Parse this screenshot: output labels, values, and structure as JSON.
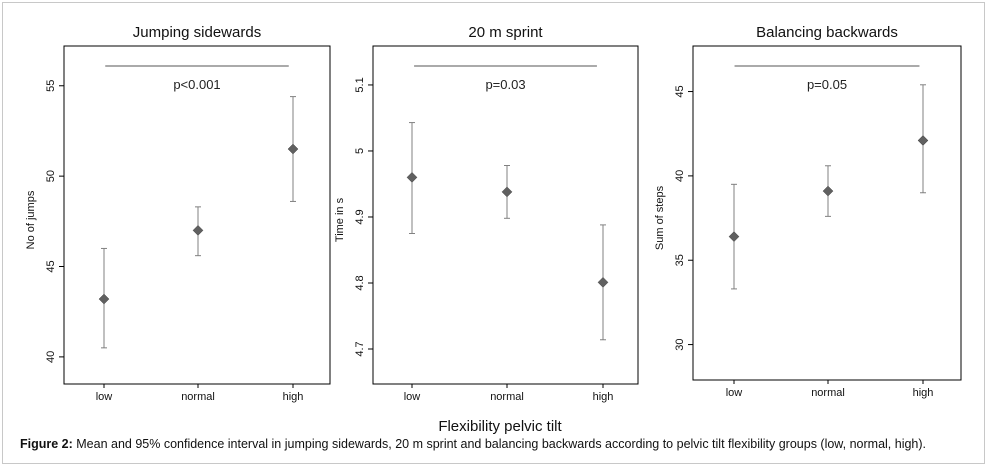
{
  "figure": {
    "shared_xlabel": "Flexibility pelvic tilt",
    "caption_label": "Figure 2:",
    "caption_text": " Mean and 95% confidence interval in jumping sidewards, 20 m sprint and balancing backwards according to pelvic tilt flexibility groups (low, normal, high).",
    "colors": {
      "marker": "#606060",
      "errorbar": "#808080",
      "axis": "#000000",
      "sigline": "#555555"
    }
  },
  "chart_data": [
    {
      "type": "scatter",
      "title": "Jumping sidewards",
      "ylabel": "No of jumps",
      "categories": [
        "low",
        "normal",
        "high"
      ],
      "mean": [
        43.2,
        47.0,
        51.5
      ],
      "ci_low": [
        40.5,
        45.6,
        48.6
      ],
      "ci_high": [
        46.0,
        48.3,
        54.4
      ],
      "yticks": [
        "40",
        "45",
        "50",
        "55"
      ],
      "ylim": [
        38.5,
        57.2
      ],
      "annotation": "p<0.001",
      "grid": false,
      "legend": "none"
    },
    {
      "type": "scatter",
      "title": "20 m sprint",
      "ylabel": "Time in s",
      "categories": [
        "low",
        "normal",
        "high"
      ],
      "mean": [
        4.96,
        4.938,
        4.801
      ],
      "ci_low": [
        4.875,
        4.898,
        4.714
      ],
      "ci_high": [
        5.043,
        4.978,
        4.888
      ],
      "yticks": [
        "4.7",
        "4.8",
        "4.9",
        "5",
        "5.1"
      ],
      "ylim": [
        4.647,
        5.159
      ],
      "annotation": "p=0.03",
      "grid": false,
      "legend": "none"
    },
    {
      "type": "scatter",
      "title": "Balancing backwards",
      "ylabel": "Sum of steps",
      "categories": [
        "low",
        "normal",
        "high"
      ],
      "mean": [
        36.4,
        39.1,
        42.1
      ],
      "ci_low": [
        33.3,
        37.6,
        39.0
      ],
      "ci_high": [
        39.5,
        40.6,
        45.4
      ],
      "yticks": [
        "30",
        "35",
        "40",
        "45"
      ],
      "ylim": [
        27.9,
        47.7
      ],
      "annotation": "p=0.05",
      "grid": false,
      "legend": "none"
    }
  ]
}
